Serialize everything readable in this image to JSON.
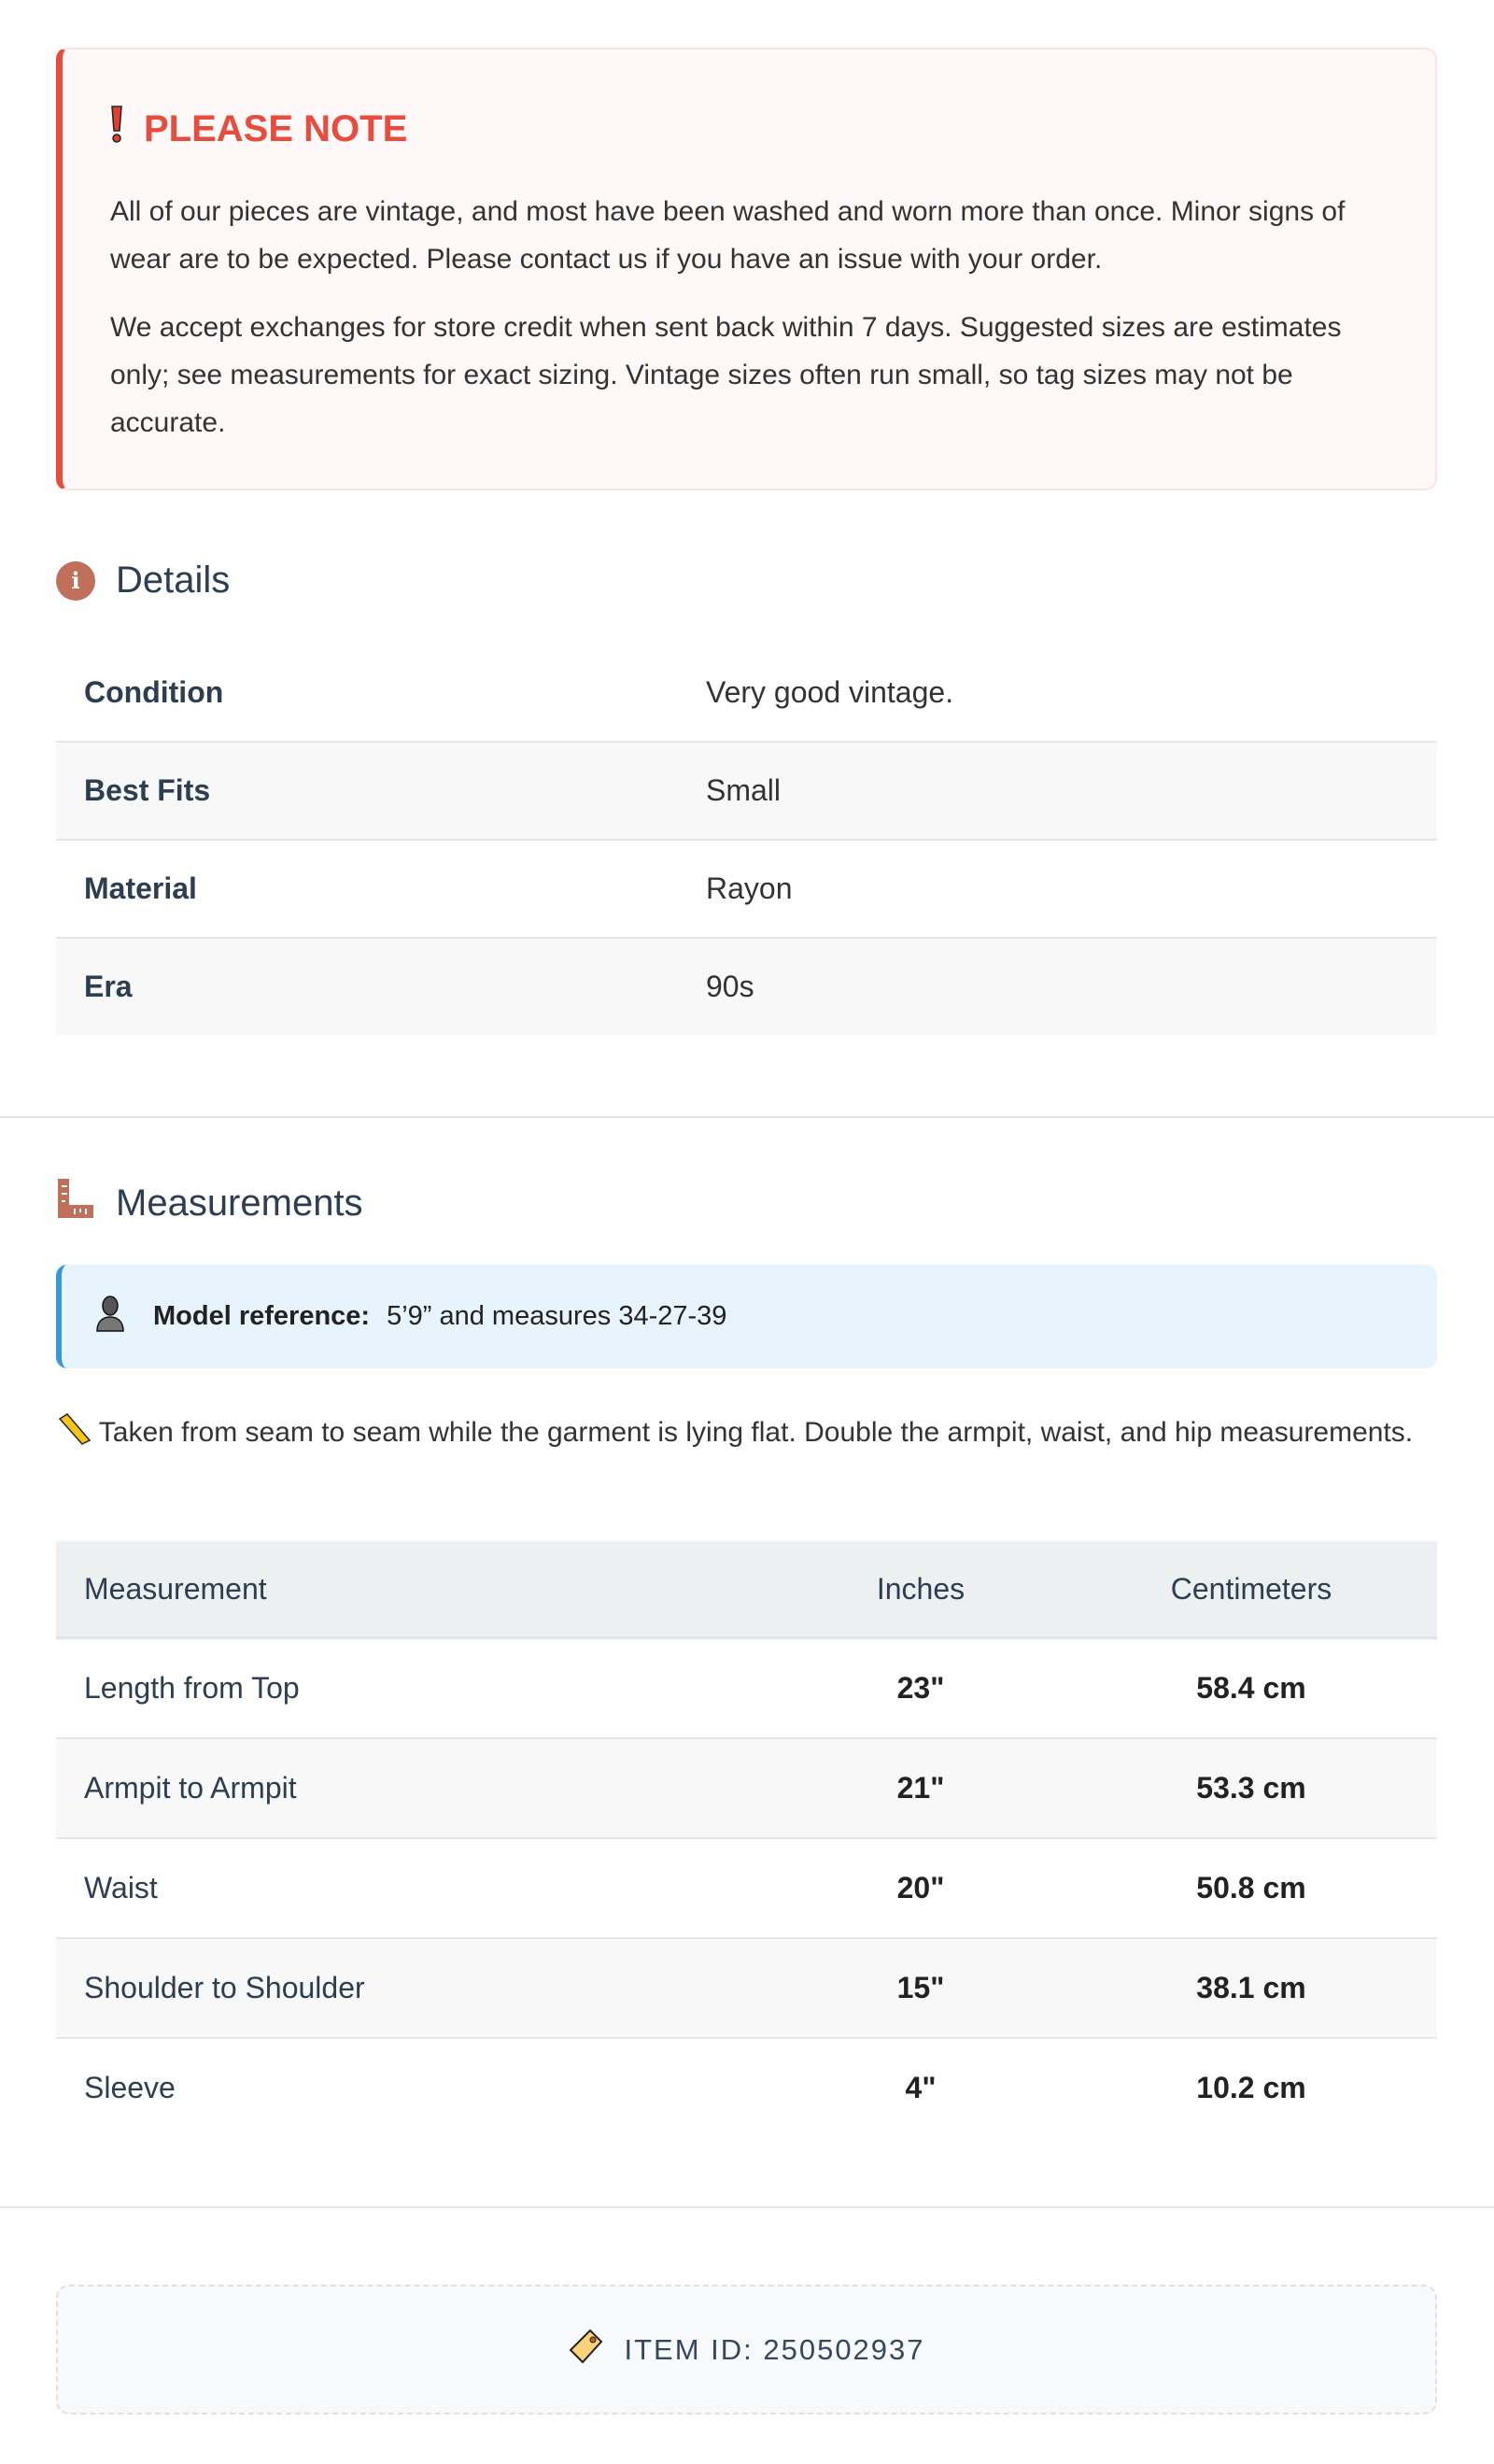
{
  "notice": {
    "icon": "exclamation-icon",
    "title": "PLEASE NOTE",
    "paragraphs": [
      "All of our pieces are vintage, and most have been washed and worn more than once. Minor signs of wear are to be expected. Please contact us if you have an issue with your order.",
      "We accept exchanges for store credit when sent back within 7 days. Suggested sizes are estimates only; see measurements for exact sizing. Vintage sizes often run small, so tag sizes may not be accurate."
    ],
    "accent": "#e74c3c"
  },
  "details": {
    "title": "Details",
    "icon": "info-icon",
    "rows": [
      {
        "label": "Condition",
        "value": "Very good vintage."
      },
      {
        "label": "Best Fits",
        "value": "Small"
      },
      {
        "label": "Material",
        "value": "Rayon"
      },
      {
        "label": "Era",
        "value": "90s"
      }
    ]
  },
  "measurements": {
    "title": "Measurements",
    "icon": "ruler-icon",
    "model": {
      "icon": "person-icon",
      "label": "Model reference:",
      "value": "5’9” and measures 34-27-39"
    },
    "note": {
      "icon": "pencil-ruler-icon",
      "text": "Taken from seam to seam while the garment is lying flat. Double the armpit, waist, and hip measurements."
    },
    "headers": [
      "Measurement",
      "Inches",
      "Centimeters"
    ],
    "rows": [
      [
        "Length from Top",
        "23\"",
        "58.4 cm"
      ],
      [
        "Armpit to Armpit",
        "21\"",
        "53.3 cm"
      ],
      [
        "Waist",
        "20\"",
        "50.8 cm"
      ],
      [
        "Shoulder to Shoulder",
        "15\"",
        "38.1 cm"
      ],
      [
        "Sleeve",
        "4\"",
        "10.2 cm"
      ]
    ]
  },
  "item": {
    "icon": "tag-icon",
    "text": "ITEM ID: 250502937"
  }
}
